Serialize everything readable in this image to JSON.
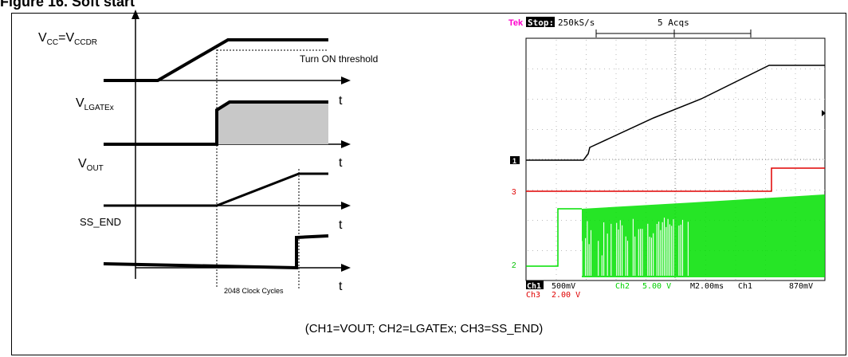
{
  "figure": {
    "title": "Figure 16. Soft start"
  },
  "timing": {
    "vcc_main": "V",
    "vcc_sub": "CC",
    "vcc_eq": "=V",
    "vcc_sub2": "CCDR",
    "threshold": "Turn ON threshold",
    "lgate_main": "V",
    "lgate_sub": "LGATEx",
    "vout_main": "V",
    "vout_sub": "OUT",
    "ss_end": "SS_END",
    "t_label": "t",
    "clock_cycles": "2048 Clock Cycles"
  },
  "scope": {
    "brand": "Tek",
    "state": "Stop:",
    "rate": "250kS/s",
    "acqs": "5 Acqs",
    "ch1_marker": "1",
    "ch2_marker": "2",
    "ch3_marker": "3",
    "ch1_name": "Ch1",
    "ch1_scale": "500mV",
    "ch2_name": "Ch2",
    "ch2_scale": "5.00 V",
    "ch3_name": "Ch3",
    "ch3_scale": "2.00 V",
    "timebase": "M2.00ms",
    "trigger_src": "Ch1",
    "trigger_level": "870mV",
    "colors": {
      "ch1": "#000000",
      "ch2": "#00e000",
      "ch3": "#e00000",
      "brand": "#ff00cc"
    }
  },
  "caption": "(CH1=VOUT; CH2=LGATEx; CH3=SS_END)"
}
